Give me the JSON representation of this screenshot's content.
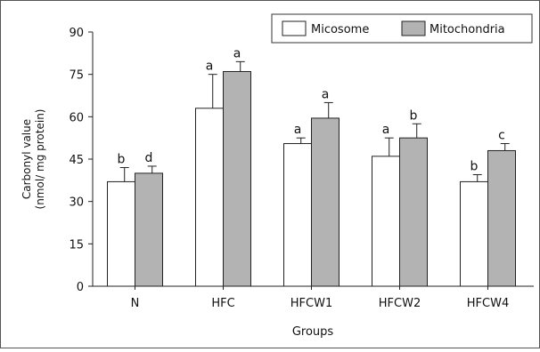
{
  "chart_data": {
    "type": "bar",
    "categories": [
      "N",
      "HFC",
      "HFCW1",
      "HFCW2",
      "HFCW4"
    ],
    "series": [
      {
        "name": "Micosome",
        "values": [
          37,
          63,
          50.5,
          46,
          37
        ],
        "errors": [
          5,
          12,
          2,
          6.5,
          2.5
        ],
        "letters": [
          "b",
          "a",
          "a",
          "a",
          "b"
        ],
        "color": "#ffffff"
      },
      {
        "name": "Mitochondria",
        "values": [
          40,
          76,
          59.5,
          52.5,
          48
        ],
        "errors": [
          2.5,
          3.5,
          5.5,
          5,
          2.5
        ],
        "letters": [
          "d",
          "a",
          "a",
          "b",
          "c"
        ],
        "color": "#b3b3b3"
      }
    ],
    "xlabel": "Groups",
    "ylabel": [
      "Carbonyl value",
      "(nmol/ mg protein)"
    ],
    "ylim": [
      0,
      90
    ],
    "yticks": [
      0,
      15,
      30,
      45,
      60,
      75,
      90
    ],
    "grid": false,
    "legend": "top-right"
  }
}
